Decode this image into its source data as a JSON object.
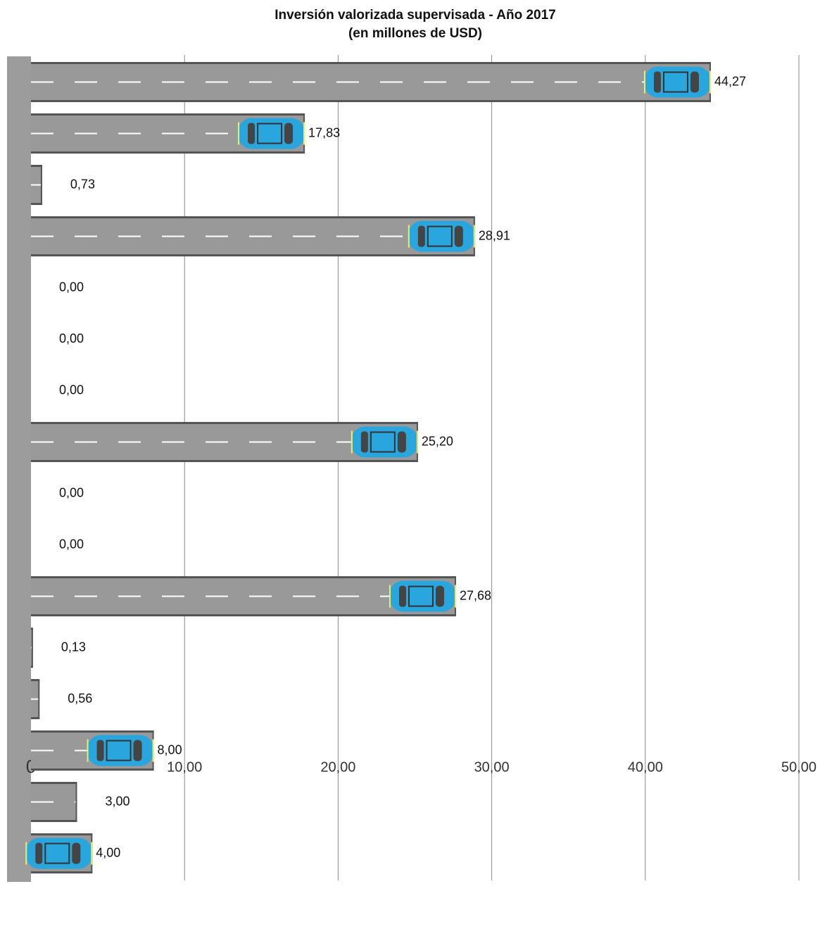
{
  "chart_data": {
    "type": "bar",
    "orientation": "horizontal",
    "title": "Inversión valorizada supervisada - Año 2017",
    "subtitle": "(en millones de USD)",
    "values": [
      44.27,
      17.83,
      0.73,
      28.91,
      0,
      0,
      0,
      25.2,
      0,
      0,
      27.68,
      0.13,
      0.56,
      8,
      3,
      4
    ],
    "value_labels": [
      "44,27",
      "17,83",
      "0,73",
      "28,91",
      "0,00",
      "0,00",
      "0,00",
      "25,20",
      "0,00",
      "0,00",
      "27,68",
      "0,13",
      "0,56",
      "8,00",
      "3,00",
      "4,00"
    ],
    "color": "#999999",
    "xlim": [
      0,
      50
    ],
    "xticks": [
      0,
      {
        "value": 10,
        "label": "10,00"
      },
      {
        "value": 20,
        "label": "20,00"
      },
      {
        "value": 30,
        "label": "30,00"
      },
      {
        "value": 40,
        "label": "40,00"
      },
      {
        "value": 50,
        "label": "50,00"
      }
    ],
    "grid": true
  }
}
